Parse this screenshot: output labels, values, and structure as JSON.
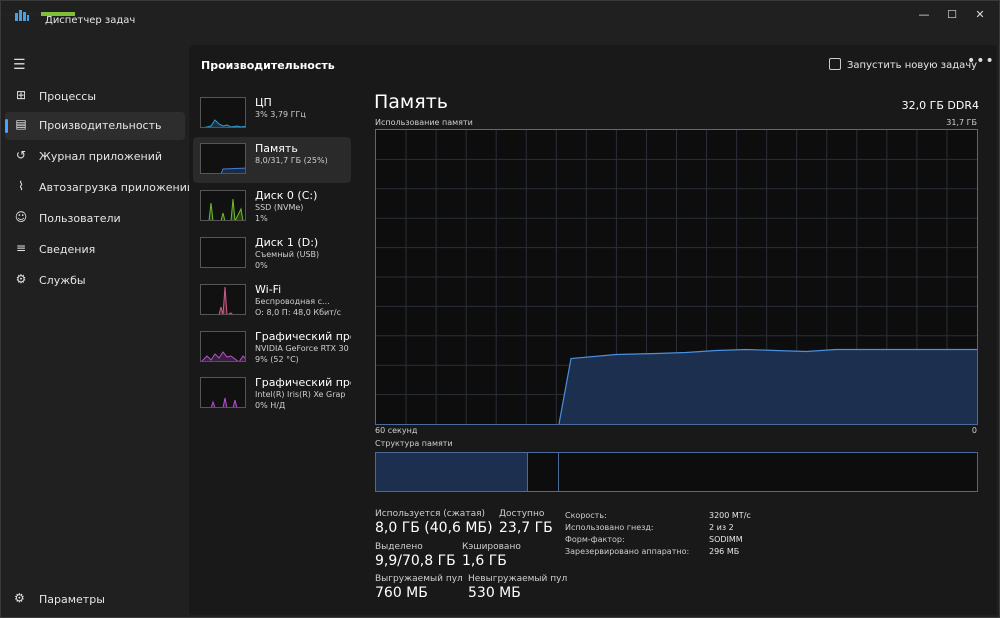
{
  "window": {
    "title": "Диспетчер задач",
    "controls": [
      "minimize-icon",
      "maximize-icon",
      "close-icon"
    ]
  },
  "sidebar": {
    "items": [
      {
        "label": "Процессы",
        "icon": "processes-icon"
      },
      {
        "label": "Производительность",
        "icon": "performance-icon",
        "active": true
      },
      {
        "label": "Журнал приложений",
        "icon": "history-icon"
      },
      {
        "label": "Автозагрузка приложений",
        "icon": "startup-icon"
      },
      {
        "label": "Пользователи",
        "icon": "users-icon"
      },
      {
        "label": "Сведения",
        "icon": "details-icon"
      },
      {
        "label": "Службы",
        "icon": "services-icon"
      }
    ],
    "settings_label": "Параметры"
  },
  "header": {
    "title": "Производительность",
    "run_task_label": "Запустить новую задачу",
    "more_label": "•••"
  },
  "devices": [
    {
      "name": "ЦП",
      "line1": "3% 3,79 ГГц",
      "line2": "",
      "color": "#2f9fd6"
    },
    {
      "name": "Память",
      "line1": "8,0/31,7 ГБ (25%)",
      "line2": "",
      "color": "#3f7fd6",
      "active": true
    },
    {
      "name": "Диск 0 (C:)",
      "line1": "SSD (NVMe)",
      "line2": "1%",
      "color": "#6cbf2c"
    },
    {
      "name": "Диск 1 (D:)",
      "line1": "Съемный (USB)",
      "line2": "0%",
      "color": "#6cbf2c"
    },
    {
      "name": "Wi-Fi",
      "line1": "Беспроводная с...",
      "line2": "О: 8,0 П: 48,0 Кбит/с",
      "color": "#d65a8c"
    },
    {
      "name": "Графический про",
      "line1": "NVIDIA GeForce RTX 30",
      "line2": "9% (52 °C)",
      "color": "#b84fd0"
    },
    {
      "name": "Графический про",
      "line1": "Intel(R) Iris(R) Xe Grap",
      "line2": "0% Н/Д",
      "color": "#b84fd0"
    }
  ],
  "detail": {
    "title": "Память",
    "spec": "32,0 ГБ DDR4",
    "usage_label": "Использование памяти",
    "usage_max": "31,7 ГБ",
    "axis_left": "60 секунд",
    "axis_right": "0",
    "structure_label": "Структура памяти",
    "graph_usage_fraction": 0.25,
    "structure_fractions": {
      "used": 0.25,
      "modified": 0.05,
      "standby": 0.7
    },
    "accent": "#4a8fe0",
    "fill": "#1c2f4f"
  },
  "stats": {
    "in_use_label": "Используется (сжатая)",
    "in_use_value": "8,0 ГБ (40,6 МБ)",
    "available_label": "Доступно",
    "available_value": "23,7 ГБ",
    "committed_label": "Выделено",
    "committed_value": "9,9/70,8 ГБ",
    "cached_label": "Кэшировано",
    "cached_value": "1,6 ГБ",
    "paged_label": "Выгружаемый пул",
    "paged_value": "760 МБ",
    "nonpaged_label": "Невыгружаемый пул",
    "nonpaged_value": "530 МБ"
  },
  "specs": {
    "speed_label": "Скорость:",
    "speed_value": "3200 MT/c",
    "slots_label": "Использовано гнезд:",
    "slots_value": "2 из 2",
    "form_label": "Форм-фактор:",
    "form_value": "SODIMM",
    "reserved_label": "Зарезервировано аппаратно:",
    "reserved_value": "296 МБ"
  }
}
